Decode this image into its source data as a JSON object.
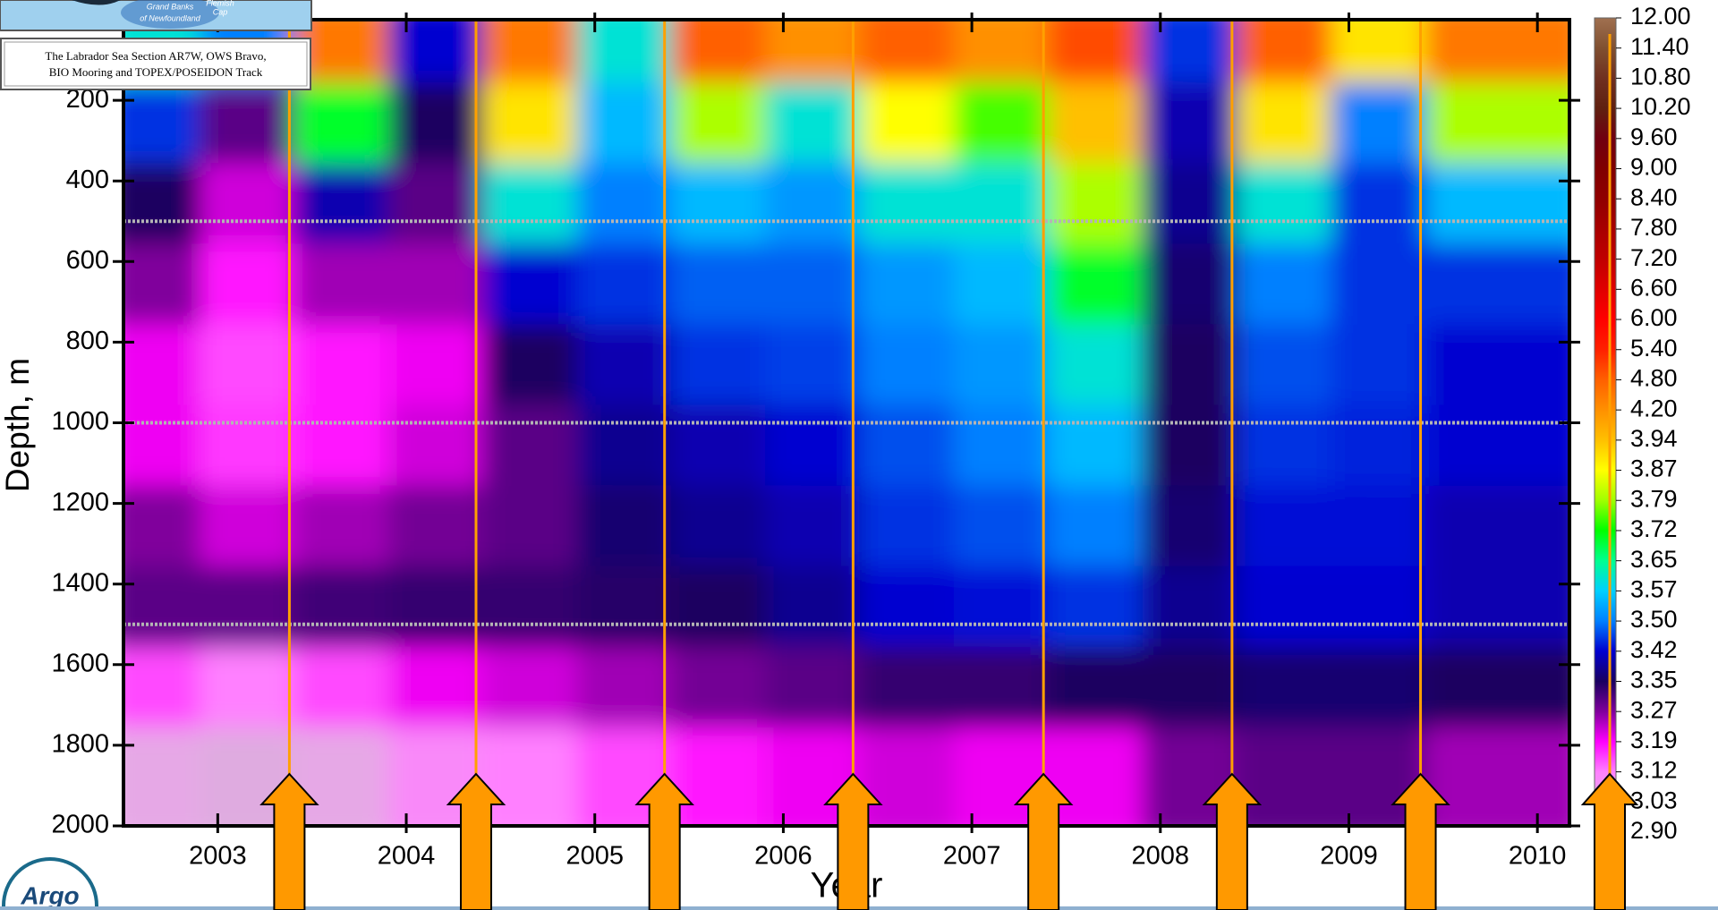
{
  "inset": {
    "map_labels": [
      "Grand Banks",
      "of Newfoundland",
      "Flemish",
      "Cap"
    ],
    "caption": [
      "The Labrador Sea Section AR7W, OWS Bravo,",
      "BIO Mooring  and TOPEX/POSEIDON Track"
    ]
  },
  "logo": "Argo",
  "chart_data": {
    "type": "heatmap",
    "xlabel": "Year",
    "ylabel": "Depth, m",
    "xlim": [
      2002.5,
      2010.17
    ],
    "xticks": [
      2003,
      2004,
      2005,
      2006,
      2007,
      2008,
      2009,
      2010
    ],
    "ylim": [
      0,
      2000
    ],
    "yticks": [
      200,
      400,
      600,
      800,
      1000,
      1200,
      1400,
      1600,
      1800,
      2000
    ],
    "y_inverted": true,
    "x": [
      2002.75,
      2003.25,
      2003.75,
      2004.25,
      2004.75,
      2005.25,
      2005.75,
      2006.25,
      2006.75,
      2007.25,
      2007.75,
      2008.25,
      2008.75,
      2009.25,
      2009.75
    ],
    "y": [
      100,
      300,
      500,
      700,
      900,
      1100,
      1300,
      1500,
      1700,
      1900
    ],
    "z": [
      [
        3.6,
        3.5,
        4.5,
        3.42,
        4.5,
        3.6,
        4.8,
        4.2,
        4.8,
        4.2,
        5.0,
        3.45,
        4.8,
        3.9,
        4.5
      ],
      [
        3.45,
        3.3,
        3.7,
        3.35,
        3.9,
        3.55,
        3.8,
        3.6,
        3.87,
        3.75,
        3.94,
        3.4,
        3.9,
        3.5,
        3.8
      ],
      [
        3.35,
        3.22,
        3.4,
        3.3,
        3.6,
        3.5,
        3.55,
        3.52,
        3.6,
        3.6,
        3.8,
        3.38,
        3.6,
        3.45,
        3.55
      ],
      [
        3.27,
        3.18,
        3.25,
        3.25,
        3.42,
        3.45,
        3.48,
        3.48,
        3.52,
        3.55,
        3.7,
        3.36,
        3.5,
        3.45,
        3.45
      ],
      [
        3.2,
        3.15,
        3.18,
        3.2,
        3.35,
        3.4,
        3.45,
        3.46,
        3.5,
        3.52,
        3.6,
        3.35,
        3.47,
        3.45,
        3.42
      ],
      [
        3.2,
        3.16,
        3.18,
        3.22,
        3.3,
        3.38,
        3.4,
        3.42,
        3.47,
        3.5,
        3.55,
        3.35,
        3.45,
        3.44,
        3.42
      ],
      [
        3.27,
        3.22,
        3.25,
        3.28,
        3.3,
        3.36,
        3.38,
        3.4,
        3.45,
        3.47,
        3.5,
        3.36,
        3.43,
        3.43,
        3.4
      ],
      [
        3.3,
        3.3,
        3.32,
        3.33,
        3.33,
        3.34,
        3.35,
        3.38,
        3.42,
        3.43,
        3.45,
        3.38,
        3.42,
        3.42,
        3.4
      ],
      [
        3.15,
        3.12,
        3.15,
        3.2,
        3.22,
        3.25,
        3.28,
        3.3,
        3.33,
        3.33,
        3.35,
        3.35,
        3.36,
        3.36,
        3.35
      ],
      [
        3.03,
        3.0,
        3.03,
        3.1,
        3.12,
        3.15,
        3.18,
        3.2,
        3.22,
        3.2,
        3.2,
        3.28,
        3.3,
        3.3,
        3.25
      ]
    ],
    "instrument_depths": [
      500,
      1000,
      1500
    ],
    "instrument_color": "#b4b4b4",
    "survey_times": [
      2003.38,
      2004.37,
      2005.37,
      2006.37,
      2007.38,
      2008.38,
      2009.38
    ],
    "survey_color": "#ffa000",
    "colorbar": {
      "ticks": [
        {
          "value": 2.9,
          "label": "2.90"
        },
        {
          "value": 3.03,
          "label": "3.03"
        },
        {
          "value": 3.12,
          "label": "3.12"
        },
        {
          "value": 3.19,
          "label": "3.19"
        },
        {
          "value": 3.27,
          "label": "3.27"
        },
        {
          "value": 3.35,
          "label": "3.35"
        },
        {
          "value": 3.42,
          "label": "3.42"
        },
        {
          "value": 3.5,
          "label": "3.50"
        },
        {
          "value": 3.57,
          "label": "3.57"
        },
        {
          "value": 3.65,
          "label": "3.65"
        },
        {
          "value": 3.72,
          "label": "3.72"
        },
        {
          "value": 3.79,
          "label": "3.79"
        },
        {
          "value": 3.87,
          "label": "3.87"
        },
        {
          "value": 3.94,
          "label": "3.94"
        },
        {
          "value": 4.2,
          "label": "4.20"
        },
        {
          "value": 4.8,
          "label": "4.80"
        },
        {
          "value": 5.4,
          "label": "5.40"
        },
        {
          "value": 6.0,
          "label": "6.00"
        },
        {
          "value": 6.6,
          "label": "6.60"
        },
        {
          "value": 7.2,
          "label": "7.20"
        },
        {
          "value": 7.8,
          "label": "7.80"
        },
        {
          "value": 8.4,
          "label": "8.40"
        },
        {
          "value": 9.0,
          "label": "9.00"
        },
        {
          "value": 9.6,
          "label": "9.60"
        },
        {
          "value": 10.2,
          "label": "10.20"
        },
        {
          "value": 10.8,
          "label": "10.80"
        },
        {
          "value": 11.4,
          "label": "11.40"
        },
        {
          "value": 12.0,
          "label": "12.00"
        }
      ],
      "colors": [
        "#c8b4cc",
        "#e6a8e6",
        "#ff80ff",
        "#ff00ff",
        "#80009c",
        "#1a0060",
        "#0000d0",
        "#0080ff",
        "#00d0ff",
        "#00ff90",
        "#00ff00",
        "#a0ff00",
        "#ffff00",
        "#ffc000",
        "#ff9000",
        "#ff6000",
        "#ff2000",
        "#ff0000",
        "#e00000",
        "#c00000",
        "#a80000",
        "#900000",
        "#800000",
        "#700010",
        "#602010",
        "#703020",
        "#805030",
        "#a07050"
      ]
    }
  }
}
